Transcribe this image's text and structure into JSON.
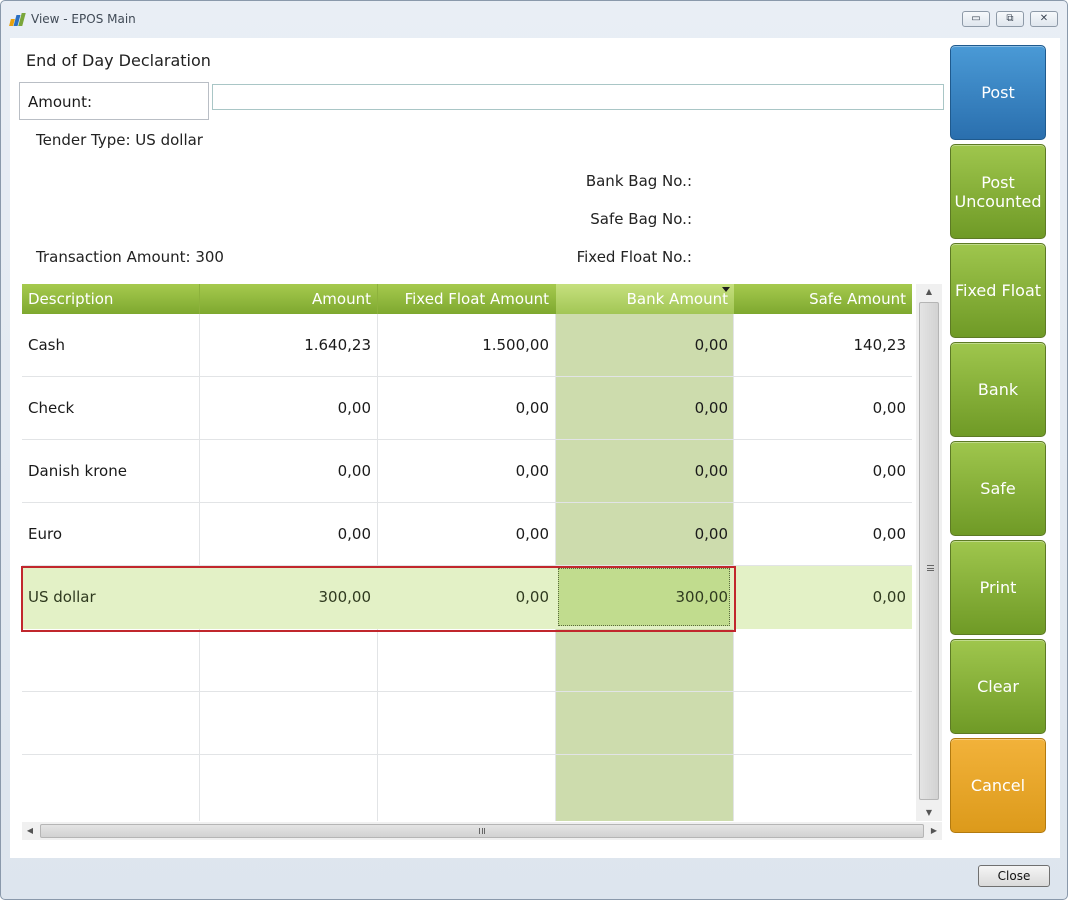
{
  "window": {
    "title": "View - EPOS Main",
    "controls": {
      "minimize": "▭",
      "maximize": "⧉",
      "close": "✕"
    }
  },
  "header": {
    "title": "End of Day Declaration",
    "amount_label": "Amount:",
    "amount_value": ""
  },
  "info": {
    "tender_type": "Tender Type: US dollar",
    "transaction_amount": "Transaction Amount: 300",
    "bank_bag_label": "Bank Bag No.:",
    "safe_bag_label": "Safe Bag No.:",
    "fixed_float_label": "Fixed Float No.:"
  },
  "table": {
    "columns": [
      "Description",
      "Amount",
      "Fixed Float Amount",
      "Bank Amount",
      "Safe Amount"
    ],
    "sorted_column": "Bank Amount",
    "rows": [
      [
        "Cash",
        "1.640,23",
        "1.500,00",
        "0,00",
        "140,23"
      ],
      [
        "Check",
        "0,00",
        "0,00",
        "0,00",
        "0,00"
      ],
      [
        "Danish krone",
        "0,00",
        "0,00",
        "0,00",
        "0,00"
      ],
      [
        "Euro",
        "0,00",
        "0,00",
        "0,00",
        "0,00"
      ],
      [
        "US dollar",
        "300,00",
        "0,00",
        "300,00",
        "0,00"
      ]
    ],
    "selected_row": "US dollar"
  },
  "actions": {
    "post": "Post",
    "post_uncounted": "Post Uncounted",
    "fixed_float": "Fixed Float",
    "bank": "Bank",
    "safe": "Safe",
    "print": "Print",
    "clear": "Clear",
    "cancel": "Cancel"
  },
  "footer": {
    "close": "Close"
  },
  "colors": {
    "header_green": "#8cb63c",
    "action_green": "#86b038",
    "post_blue": "#3a86c6",
    "cancel_orange": "#e8a82a",
    "selection_red": "#c1272d",
    "bank_column": "#cddcad"
  }
}
